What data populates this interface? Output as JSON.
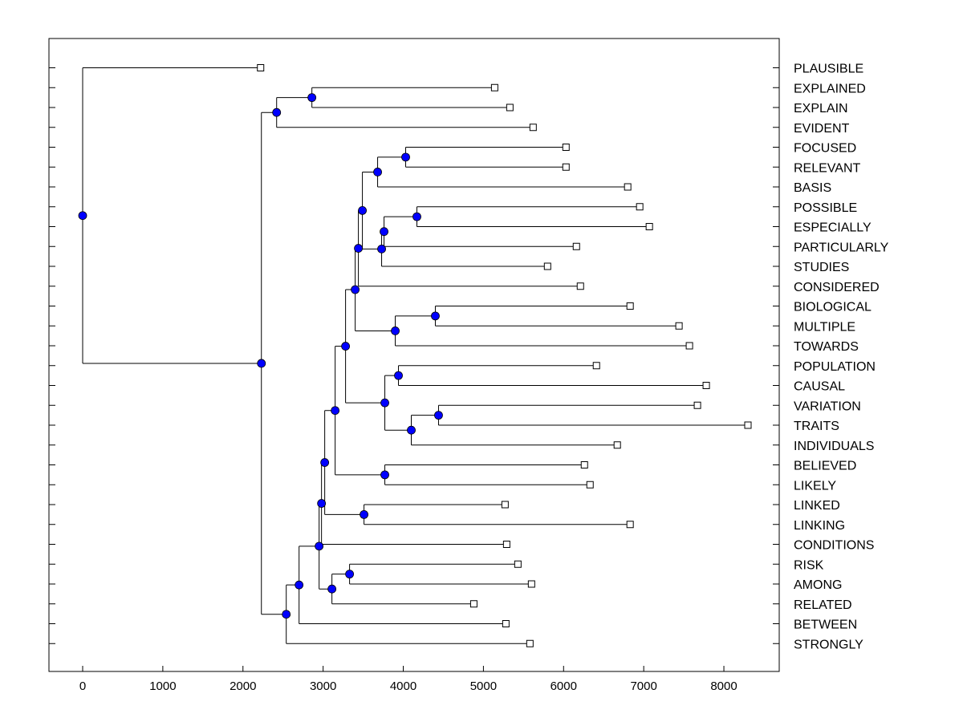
{
  "chart_data": {
    "type": "dendrogram",
    "title": "",
    "xlabel": "",
    "ylabel": "",
    "xlim": [
      -400,
      8700
    ],
    "xticks": [
      0,
      1000,
      2000,
      3000,
      4000,
      5000,
      6000,
      7000,
      8000
    ],
    "colors": {
      "node": "#0000ff",
      "line": "#000000",
      "leaf_fill": "#ffffff"
    },
    "leaves": [
      {
        "label": "PLAUSIBLE",
        "x": 2220
      },
      {
        "label": "EXPLAINED",
        "x": 5140
      },
      {
        "label": "EXPLAIN",
        "x": 5330
      },
      {
        "label": "EVIDENT",
        "x": 5620
      },
      {
        "label": "FOCUSED",
        "x": 6030
      },
      {
        "label": "RELEVANT",
        "x": 6030
      },
      {
        "label": "BASIS",
        "x": 6800
      },
      {
        "label": "POSSIBLE",
        "x": 6950
      },
      {
        "label": "ESPECIALLY",
        "x": 7070
      },
      {
        "label": "PARTICULARLY",
        "x": 6160
      },
      {
        "label": "STUDIES",
        "x": 5800
      },
      {
        "label": "CONSIDERED",
        "x": 6210
      },
      {
        "label": "BIOLOGICAL",
        "x": 6830
      },
      {
        "label": "MULTIPLE",
        "x": 7440
      },
      {
        "label": "TOWARDS",
        "x": 7570
      },
      {
        "label": "POPULATION",
        "x": 6410
      },
      {
        "label": "CAUSAL",
        "x": 7780
      },
      {
        "label": "VARIATION",
        "x": 7670
      },
      {
        "label": "TRAITS",
        "x": 8300
      },
      {
        "label": "INDIVIDUALS",
        "x": 6670
      },
      {
        "label": "BELIEVED",
        "x": 6260
      },
      {
        "label": "LIKELY",
        "x": 6330
      },
      {
        "label": "LINKED",
        "x": 5270
      },
      {
        "label": "LINKING",
        "x": 6830
      },
      {
        "label": "CONDITIONS",
        "x": 5290
      },
      {
        "label": "RISK",
        "x": 5430
      },
      {
        "label": "AMONG",
        "x": 5600
      },
      {
        "label": "RELATED",
        "x": 4880
      },
      {
        "label": "BETWEEN",
        "x": 5280
      },
      {
        "label": "STRONGLY",
        "x": 5580
      }
    ],
    "merges": [
      {
        "height": 2860,
        "children": [
          "L1",
          "L2"
        ]
      },
      {
        "height": 2420,
        "children": [
          "M0",
          "L3"
        ]
      },
      {
        "height": 4030,
        "children": [
          "L4",
          "L5"
        ]
      },
      {
        "height": 3680,
        "children": [
          "M2",
          "L6"
        ]
      },
      {
        "height": 4170,
        "children": [
          "L7",
          "L8"
        ]
      },
      {
        "height": 3760,
        "children": [
          "M4",
          "L9"
        ]
      },
      {
        "height": 3730,
        "children": [
          "M5",
          "L10"
        ]
      },
      {
        "height": 3490,
        "children": [
          "M3",
          "M6"
        ]
      },
      {
        "height": 3440,
        "children": [
          "M7",
          "L11"
        ]
      },
      {
        "height": 4400,
        "children": [
          "L12",
          "L13"
        ]
      },
      {
        "height": 3900,
        "children": [
          "M9",
          "L14"
        ]
      },
      {
        "height": 3400,
        "children": [
          "M8",
          "M10"
        ]
      },
      {
        "height": 3940,
        "children": [
          "L15",
          "L16"
        ]
      },
      {
        "height": 4440,
        "children": [
          "L17",
          "L18"
        ]
      },
      {
        "height": 4100,
        "children": [
          "M13",
          "L19"
        ]
      },
      {
        "height": 3770,
        "children": [
          "M12",
          "M14"
        ]
      },
      {
        "height": 3280,
        "children": [
          "M11",
          "M15"
        ]
      },
      {
        "height": 3770,
        "children": [
          "L20",
          "L21"
        ]
      },
      {
        "height": 3150,
        "children": [
          "M16",
          "M17"
        ]
      },
      {
        "height": 3510,
        "children": [
          "L22",
          "L23"
        ]
      },
      {
        "height": 3020,
        "children": [
          "M18",
          "M19"
        ]
      },
      {
        "height": 3330,
        "children": [
          "L25",
          "L26"
        ]
      },
      {
        "height": 3110,
        "children": [
          "M21",
          "L27"
        ]
      },
      {
        "height": 2980,
        "children": [
          "M20",
          "L24"
        ]
      },
      {
        "height": 2950,
        "children": [
          "M23",
          "M22"
        ]
      },
      {
        "height": 2700,
        "children": [
          "M24",
          "L28"
        ]
      },
      {
        "height": 2540,
        "children": [
          "M25",
          "L29"
        ]
      },
      {
        "height": 2230,
        "children": [
          "M1",
          "M26"
        ]
      },
      {
        "height": 0,
        "children": [
          "L0",
          "M27"
        ]
      }
    ]
  }
}
